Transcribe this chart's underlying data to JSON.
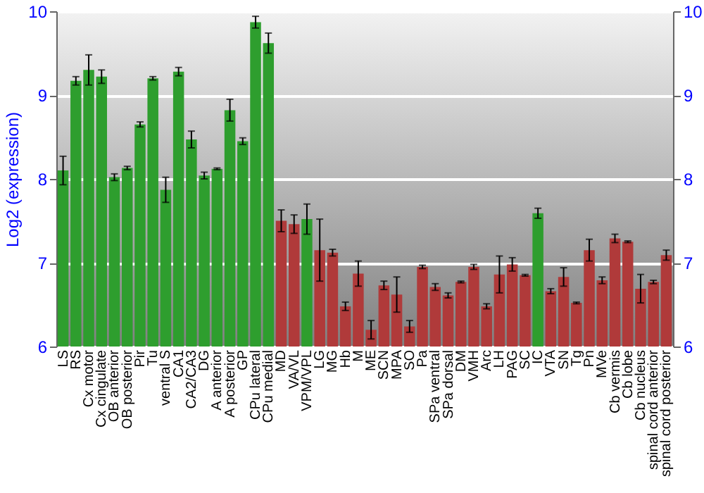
{
  "chart_data": {
    "type": "bar",
    "ylabel": "Log2 (expression)",
    "categories": [
      "LS",
      "RS",
      "Cx motor",
      "Cx cingulate",
      "OB anterior",
      "OB posterior",
      "Pir",
      "Tu",
      "ventral S",
      "CA1",
      "CA2/CA3",
      "DG",
      "A anterior",
      "A posterior",
      "GP",
      "CPu lateral",
      "CPu medial",
      "MD",
      "VA/VL",
      "VPM/VPL",
      "LG",
      "MG",
      "Hb",
      "M",
      "ME",
      "SCN",
      "MPA",
      "SO",
      "Pa",
      "SPa ventral",
      "SPa dorsal",
      "DM",
      "VMH",
      "Arc",
      "LH",
      "PAG",
      "SC",
      "IC",
      "VTA",
      "SN",
      "Tg",
      "Pn",
      "MVe",
      "Cb vermis",
      "Cb lobe",
      "Cb nucleus",
      "spinal cord anterior",
      "spinal cord posterior"
    ],
    "values": [
      8.1,
      9.17,
      9.3,
      9.22,
      8.02,
      8.13,
      8.65,
      9.2,
      7.87,
      9.28,
      8.47,
      8.04,
      8.12,
      8.82,
      8.45,
      9.87,
      9.62,
      7.5,
      7.46,
      7.52,
      7.15,
      7.12,
      6.48,
      6.87,
      6.2,
      6.73,
      6.62,
      6.24,
      6.95,
      6.71,
      6.61,
      6.77,
      6.95,
      6.48,
      6.86,
      6.98,
      6.85,
      7.59,
      6.66,
      6.83,
      6.52,
      7.15,
      6.79,
      7.29,
      7.25,
      6.69,
      6.77,
      7.09
    ],
    "errors": [
      0.17,
      0.05,
      0.18,
      0.08,
      0.04,
      0.02,
      0.03,
      0.02,
      0.15,
      0.05,
      0.1,
      0.04,
      0.01,
      0.13,
      0.04,
      0.07,
      0.12,
      0.13,
      0.11,
      0.18,
      0.37,
      0.04,
      0.05,
      0.15,
      0.11,
      0.05,
      0.21,
      0.07,
      0.02,
      0.04,
      0.03,
      0.01,
      0.03,
      0.03,
      0.22,
      0.08,
      0.01,
      0.06,
      0.03,
      0.11,
      0.01,
      0.13,
      0.04,
      0.05,
      0.01,
      0.17,
      0.02,
      0.06
    ],
    "colors": [
      "#2e9e2e",
      "#2e9e2e",
      "#2e9e2e",
      "#2e9e2e",
      "#2e9e2e",
      "#2e9e2e",
      "#2e9e2e",
      "#2e9e2e",
      "#2e9e2e",
      "#2e9e2e",
      "#2e9e2e",
      "#2e9e2e",
      "#2e9e2e",
      "#2e9e2e",
      "#2e9e2e",
      "#2e9e2e",
      "#2e9e2e",
      "#b03a3a",
      "#b03a3a",
      "#2e9e2e",
      "#b03a3a",
      "#b03a3a",
      "#b03a3a",
      "#b03a3a",
      "#b03a3a",
      "#b03a3a",
      "#b03a3a",
      "#b03a3a",
      "#b03a3a",
      "#b03a3a",
      "#b03a3a",
      "#b03a3a",
      "#b03a3a",
      "#b03a3a",
      "#b03a3a",
      "#b03a3a",
      "#b03a3a",
      "#2e9e2e",
      "#b03a3a",
      "#b03a3a",
      "#b03a3a",
      "#b03a3a",
      "#b03a3a",
      "#b03a3a",
      "#b03a3a",
      "#b03a3a",
      "#b03a3a",
      "#b03a3a"
    ],
    "ylim": [
      6,
      10
    ],
    "yticks": [
      6,
      7,
      8,
      9,
      10
    ],
    "y2lim": [
      6,
      10
    ],
    "y2ticks": [
      6,
      7,
      8,
      9,
      10
    ],
    "grid": true
  }
}
